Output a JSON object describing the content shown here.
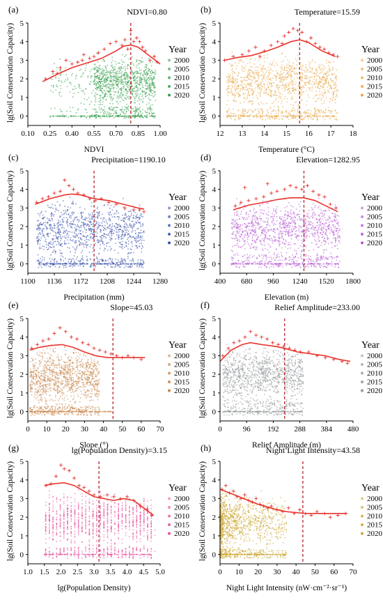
{
  "chart_data": [
    {
      "type": "scatter",
      "panel_label": "(a)",
      "xlabel": "NDVI",
      "ylabel": "lg(Soil Conservation Capacity)",
      "x_ticks": [
        "0.10",
        "0.25",
        "0.40",
        "0.55",
        "0.70",
        "0.85",
        "1.00"
      ],
      "xlim": [
        0.1,
        1.0
      ],
      "y_ticks": [
        "0",
        "1",
        "2",
        "3",
        "4",
        "5"
      ],
      "ylim": [
        -0.5,
        5
      ],
      "threshold": {
        "label": "NDVI=0.80",
        "x": 0.8
      },
      "legend": {
        "title": "Year",
        "items": [
          "2000",
          "2005",
          "2010",
          "2015",
          "2020"
        ]
      },
      "cloud": {
        "x": [
          0.55,
          0.97
        ],
        "xp": [
          0.25,
          0.55
        ],
        "core": [
          0.5,
          3.2
        ],
        "thin": [
          -0.1,
          0.5
        ],
        "bottom": [
          0.3,
          0.95
        ],
        "zero": [
          0.25,
          0.97
        ],
        "color": "#2e9a45"
      },
      "trend": {
        "x": [
          0.2,
          0.3,
          0.4,
          0.5,
          0.6,
          0.7,
          0.75,
          0.8,
          0.85,
          0.9,
          0.95,
          1.0
        ],
        "y": [
          1.85,
          2.25,
          2.6,
          2.85,
          3.1,
          3.5,
          3.75,
          3.82,
          3.7,
          3.4,
          3.1,
          2.8
        ]
      },
      "peaks": {
        "x": [
          0.22,
          0.27,
          0.32,
          0.36,
          0.4,
          0.44,
          0.48,
          0.52,
          0.55,
          0.58,
          0.62,
          0.66,
          0.7,
          0.74,
          0.76,
          0.78,
          0.8,
          0.82,
          0.84,
          0.86,
          0.88,
          0.9,
          0.93,
          0.96,
          0.98,
          0.3,
          0.47
        ],
        "y": [
          2.0,
          2.4,
          2.6,
          3.0,
          2.8,
          2.9,
          3.3,
          3.1,
          3.2,
          3.4,
          3.6,
          3.9,
          4.0,
          3.8,
          4.1,
          3.6,
          4.6,
          4.0,
          4.2,
          4.0,
          3.7,
          3.5,
          3.0,
          3.2,
          2.9,
          2.3,
          3.0
        ]
      }
    },
    {
      "type": "scatter",
      "panel_label": "(b)",
      "xlabel": "Temperature (°C)",
      "ylabel": "lg(Soil Conservation Capacity)",
      "x_ticks": [
        "12",
        "13",
        "14",
        "15",
        "16",
        "17",
        "18"
      ],
      "xlim": [
        12,
        18
      ],
      "y_ticks": [
        "0",
        "1",
        "2",
        "3",
        "4",
        "5"
      ],
      "ylim": [
        -0.5,
        5
      ],
      "threshold": {
        "label": "Temperature=15.59",
        "x": 15.59
      },
      "legend": {
        "title": "Year",
        "items": [
          "2000",
          "2005",
          "2010",
          "2015",
          "2020"
        ]
      },
      "cloud": {
        "x": [
          12.3,
          17.3
        ],
        "core": [
          0.4,
          3.3
        ],
        "thin": [
          -0.2,
          0.4
        ],
        "zero": [
          12.3,
          17.3
        ],
        "color": "#e6a33a"
      },
      "trend": {
        "x": [
          12.2,
          12.8,
          13.4,
          14.0,
          14.6,
          15.2,
          15.6,
          16.0,
          16.6,
          17.2
        ],
        "y": [
          3.0,
          3.15,
          3.25,
          3.45,
          3.7,
          4.0,
          4.1,
          3.95,
          3.5,
          3.2
        ]
      },
      "peaks": {
        "x": [
          12.2,
          12.6,
          13.0,
          13.3,
          13.6,
          14.0,
          14.3,
          14.6,
          14.9,
          15.1,
          15.3,
          15.5,
          15.7,
          15.9,
          16.1,
          16.3,
          16.5,
          16.7,
          16.9,
          17.1,
          17.3,
          13.8,
          14.8
        ],
        "y": [
          3.0,
          3.2,
          3.3,
          3.5,
          3.7,
          3.5,
          3.8,
          4.0,
          4.3,
          4.5,
          4.7,
          4.6,
          4.5,
          4.0,
          4.2,
          3.9,
          3.7,
          3.6,
          3.4,
          3.3,
          3.2,
          3.2,
          3.9
        ]
      }
    },
    {
      "type": "scatter",
      "panel_label": "(c)",
      "xlabel": "Precipitation (mm)",
      "ylabel": "lg(Soil Conservation Capacity)",
      "x_ticks": [
        "1100",
        "1136",
        "1172",
        "1208",
        "1244",
        "1280"
      ],
      "xlim": [
        1100,
        1280
      ],
      "y_ticks": [
        "0",
        "1",
        "2",
        "3",
        "4",
        "5"
      ],
      "ylim": [
        -0.5,
        5
      ],
      "threshold": {
        "label": "Precipitation=1190.10",
        "x": 1190.1
      },
      "legend": {
        "title": "Year",
        "items": [
          "2000",
          "2005",
          "2010",
          "2015",
          "2020"
        ]
      },
      "cloud": {
        "x": [
          1112,
          1258
        ],
        "core": [
          0.3,
          3.4
        ],
        "thin": [
          -0.2,
          0.4
        ],
        "zero": [
          1112,
          1258
        ],
        "color": "#2f48a8"
      },
      "trend": {
        "x": [
          1110,
          1130,
          1150,
          1160,
          1172,
          1190,
          1210,
          1230,
          1250,
          1258
        ],
        "y": [
          3.2,
          3.5,
          3.7,
          3.75,
          3.7,
          3.5,
          3.4,
          3.2,
          3.0,
          2.95
        ]
      },
      "peaks": {
        "x": [
          1112,
          1120,
          1128,
          1136,
          1144,
          1150,
          1156,
          1162,
          1168,
          1176,
          1184,
          1192,
          1200,
          1210,
          1220,
          1232,
          1244,
          1252,
          1258
        ],
        "y": [
          3.3,
          3.5,
          3.6,
          3.8,
          3.9,
          4.5,
          4.2,
          4.0,
          3.8,
          3.7,
          3.5,
          3.4,
          3.5,
          3.3,
          3.2,
          3.0,
          2.9,
          2.9,
          2.8
        ]
      }
    },
    {
      "type": "scatter",
      "panel_label": "(d)",
      "xlabel": "Elevation (m)",
      "ylabel": "lg(Soil Conservation Capacity)",
      "x_ticks": [
        "400",
        "680",
        "960",
        "1240",
        "1520",
        "1800"
      ],
      "xlim": [
        400,
        1800
      ],
      "y_ticks": [
        "0",
        "1",
        "2",
        "3",
        "4",
        "5"
      ],
      "ylim": [
        -0.5,
        5
      ],
      "threshold": {
        "label": "Elevation=1282.95",
        "x": 1282.95
      },
      "legend": {
        "title": "Year",
        "items": [
          "2000",
          "2005",
          "2010",
          "2015",
          "2020"
        ]
      },
      "cloud": {
        "x": [
          520,
          1660
        ],
        "core": [
          0.5,
          3.4
        ],
        "thin": [
          -0.2,
          0.5
        ],
        "zero": [
          520,
          1660
        ],
        "color": "#b14fd0"
      },
      "trend": {
        "x": [
          540,
          700,
          860,
          1000,
          1140,
          1280,
          1400,
          1520,
          1640
        ],
        "y": [
          2.9,
          3.15,
          3.3,
          3.45,
          3.55,
          3.55,
          3.4,
          3.1,
          2.8
        ]
      },
      "peaks": {
        "x": [
          560,
          620,
          700,
          780,
          860,
          940,
          1000,
          1080,
          1140,
          1200,
          1260,
          1320,
          1380,
          1440,
          1500,
          1560,
          1620,
          660,
          900
        ],
        "y": [
          3.1,
          3.3,
          3.4,
          3.5,
          3.6,
          3.8,
          3.9,
          4.0,
          4.2,
          4.1,
          4.0,
          4.2,
          3.9,
          3.7,
          3.6,
          3.2,
          3.0,
          4.1,
          4.3
        ]
      }
    },
    {
      "type": "scatter",
      "panel_label": "(e)",
      "xlabel": "Slope (°)",
      "ylabel": "lg(Soil Conservation Capacity)",
      "x_ticks": [
        "0",
        "10",
        "20",
        "30",
        "40",
        "50",
        "60",
        "70"
      ],
      "xlim": [
        0,
        70
      ],
      "y_ticks": [
        "0",
        "1",
        "2",
        "3",
        "4",
        "5"
      ],
      "ylim": [
        -0.5,
        5
      ],
      "threshold": {
        "label": "Slope=45.03",
        "x": 45.03
      },
      "legend": {
        "title": "Year",
        "items": [
          "2000",
          "2005",
          "2010",
          "2015",
          "2020"
        ]
      },
      "cloud": {
        "x": [
          1,
          38
        ],
        "core": [
          0.3,
          3.4
        ],
        "thin": [
          -0.2,
          0.3
        ],
        "zero": [
          1,
          45
        ],
        "color": "#c47f42"
      },
      "trend": {
        "x": [
          1,
          6,
          12,
          18,
          24,
          30,
          36,
          42,
          48,
          54,
          60,
          62
        ],
        "y": [
          3.3,
          3.45,
          3.55,
          3.6,
          3.45,
          3.2,
          3.0,
          2.9,
          2.9,
          2.9,
          2.9,
          2.9
        ]
      },
      "peaks": {
        "x": [
          2,
          5,
          8,
          11,
          14,
          17,
          20,
          23,
          26,
          29,
          32,
          35,
          38,
          41,
          44,
          47,
          50,
          53,
          56,
          60
        ],
        "y": [
          3.4,
          3.6,
          3.8,
          3.9,
          4.2,
          4.5,
          4.3,
          4.0,
          3.9,
          3.7,
          3.6,
          3.4,
          3.3,
          3.2,
          3.1,
          3.0,
          2.9,
          3.0,
          2.9,
          2.8
        ]
      }
    },
    {
      "type": "scatter",
      "panel_label": "(f)",
      "xlabel": "Relief Amplitude (m)",
      "ylabel": "lg(Soil Conservation Capacity)",
      "x_ticks": [
        "0",
        "96",
        "192",
        "288",
        "384",
        "480"
      ],
      "xlim": [
        0,
        480
      ],
      "y_ticks": [
        "0",
        "1",
        "2",
        "3",
        "4",
        "5"
      ],
      "ylim": [
        -0.5,
        5
      ],
      "threshold": {
        "label": "Relief Amplitude=233.00",
        "x": 233.0
      },
      "legend": {
        "title": "Year",
        "items": [
          "2000",
          "2005",
          "2010",
          "2015",
          "2020"
        ]
      },
      "cloud": {
        "x": [
          10,
          300
        ],
        "core": [
          0.6,
          3.5
        ],
        "thin": [
          -0.2,
          0.5
        ],
        "zero": [
          10,
          300
        ],
        "color": "#8e9296"
      },
      "trend": {
        "x": [
          0,
          40,
          80,
          110,
          150,
          200,
          233,
          280,
          330,
          380,
          430,
          470
        ],
        "y": [
          2.7,
          3.3,
          3.6,
          3.7,
          3.6,
          3.5,
          3.4,
          3.2,
          3.1,
          3.0,
          2.8,
          2.7
        ]
      },
      "peaks": {
        "x": [
          10,
          30,
          50,
          70,
          90,
          110,
          130,
          150,
          170,
          190,
          210,
          230,
          250,
          270,
          290,
          320,
          350,
          380,
          410,
          440,
          460
        ],
        "y": [
          3.0,
          3.4,
          3.7,
          3.8,
          4.0,
          4.3,
          4.1,
          4.0,
          3.9,
          3.7,
          3.6,
          3.5,
          3.4,
          3.3,
          3.2,
          3.2,
          3.0,
          2.9,
          2.8,
          2.7,
          2.6
        ]
      }
    },
    {
      "type": "scatter",
      "panel_label": "(g)",
      "xlabel": "lg(Population Density)",
      "ylabel": "lg(Soil Conservation Capacity)",
      "x_ticks": [
        "1.0",
        "1.5",
        "2.0",
        "2.5",
        "3.0",
        "3.5",
        "4.0",
        "4.5",
        "5.0"
      ],
      "xlim": [
        1.0,
        5.0
      ],
      "y_ticks": [
        "0",
        "1",
        "2",
        "3",
        "4",
        "5"
      ],
      "ylim": [
        -0.5,
        5
      ],
      "threshold": {
        "label": "lg(Population Density)=3.15",
        "x": 3.15
      },
      "legend": {
        "title": "Year",
        "items": [
          "2000",
          "2005",
          "2010",
          "2015",
          "2020"
        ]
      },
      "cloud": {
        "x": [
          1.5,
          4.8
        ],
        "core": [
          0.4,
          3.3
        ],
        "thin": [
          -0.2,
          0.4
        ],
        "zero": [
          1.5,
          4.8
        ],
        "color": "#e8489a",
        "columns": true
      },
      "trend": {
        "x": [
          1.5,
          1.8,
          2.1,
          2.4,
          2.7,
          3.0,
          3.3,
          3.6,
          3.9,
          4.2,
          4.5,
          4.8
        ],
        "y": [
          3.7,
          3.8,
          3.85,
          3.7,
          3.4,
          3.1,
          3.0,
          2.9,
          3.0,
          2.9,
          2.5,
          2.1
        ]
      },
      "peaks": {
        "x": [
          1.55,
          1.7,
          1.85,
          2.0,
          2.1,
          2.25,
          2.4,
          2.55,
          2.7,
          2.85,
          3.0,
          3.2,
          3.4,
          3.6,
          3.8,
          4.0,
          4.2,
          4.4,
          4.6,
          4.75
        ],
        "y": [
          3.7,
          3.8,
          4.2,
          4.8,
          4.6,
          4.5,
          4.1,
          3.7,
          3.6,
          3.4,
          3.2,
          3.1,
          3.2,
          3.1,
          3.0,
          3.1,
          2.9,
          2.6,
          2.4,
          2.1
        ]
      }
    },
    {
      "type": "scatter",
      "panel_label": "(h)",
      "xlabel": "Night Light Intensity (nW·cm⁻²·sr⁻¹)",
      "ylabel": "lg(Soil Conservation Capacity)",
      "x_ticks": [
        "0",
        "10",
        "20",
        "30",
        "40",
        "50",
        "60",
        "70"
      ],
      "xlim": [
        0,
        70
      ],
      "y_ticks": [
        "0",
        "1",
        "2",
        "3",
        "4",
        "5"
      ],
      "ylim": [
        -0.5,
        5
      ],
      "threshold": {
        "label": "Night Light Intensity=43.58",
        "x": 43.58
      },
      "legend": {
        "title": "Year",
        "items": [
          "2000",
          "2005",
          "2010",
          "2015",
          "2020"
        ]
      },
      "cloud": {
        "x": [
          0,
          20
        ],
        "core": [
          0.3,
          3.3
        ],
        "thin": [
          -0.2,
          0.3
        ],
        "zero": [
          0,
          35
        ],
        "color": "#c9a226",
        "skew": true
      },
      "trend": {
        "x": [
          0,
          5,
          10,
          15,
          20,
          25,
          30,
          35,
          40,
          45,
          50,
          55,
          60,
          65,
          67
        ],
        "y": [
          3.5,
          3.3,
          3.1,
          2.9,
          2.7,
          2.55,
          2.4,
          2.3,
          2.25,
          2.2,
          2.2,
          2.2,
          2.2,
          2.2,
          2.2
        ]
      },
      "peaks": {
        "x": [
          1,
          3,
          5,
          7,
          9,
          11,
          13,
          15,
          17,
          19,
          21,
          23,
          25,
          27,
          30,
          33,
          36,
          39,
          42,
          45,
          48,
          51,
          55,
          58,
          62,
          66
        ],
        "y": [
          3.5,
          3.7,
          3.3,
          3.4,
          3.1,
          3.0,
          3.2,
          2.9,
          2.8,
          3.0,
          2.7,
          2.6,
          2.5,
          2.6,
          2.4,
          2.3,
          2.5,
          2.2,
          2.4,
          2.2,
          2.1,
          2.3,
          2.2,
          2.0,
          2.1,
          2.2
        ]
      }
    }
  ]
}
